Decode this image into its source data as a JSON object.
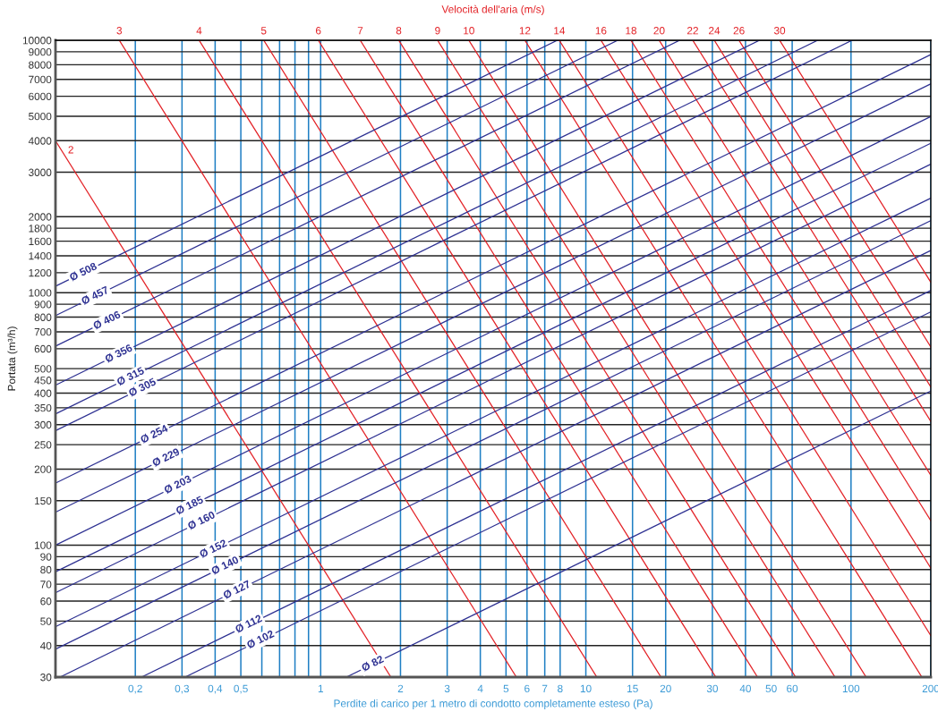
{
  "chart_data": {
    "type": "line",
    "title": "Velocità dell'aria (m/s)",
    "xlabel": "Perdite di carico per 1 metro di condotto completamente esteso (Pa)",
    "ylabel": "Portata (m³/h)",
    "log": "xy",
    "grid": true,
    "xlim": [
      0.1,
      200
    ],
    "ylim": [
      30,
      10000
    ],
    "xticks": [
      {
        "value": 0.2,
        "label": "0,2"
      },
      {
        "value": 0.3,
        "label": "0,3"
      },
      {
        "value": 0.4,
        "label": "0,4"
      },
      {
        "value": 0.5,
        "label": "0,5"
      },
      {
        "value": 0.6,
        "label": null
      },
      {
        "value": 0.7,
        "label": null
      },
      {
        "value": 0.8,
        "label": null
      },
      {
        "value": 0.9,
        "label": null
      },
      1,
      2,
      3,
      4,
      5,
      6,
      7,
      8,
      10,
      15,
      20,
      30,
      40,
      50,
      60,
      100,
      200
    ],
    "yticks": [
      30,
      40,
      50,
      60,
      70,
      80,
      90,
      100,
      150,
      200,
      250,
      300,
      350,
      400,
      450,
      500,
      600,
      700,
      800,
      900,
      1000,
      1200,
      1400,
      1600,
      1800,
      2000,
      3000,
      4000,
      5000,
      6000,
      7000,
      8000,
      9000,
      10000
    ],
    "series": [
      {
        "name": "2",
        "color": "#e32227",
        "x": [
          0.1,
          1.84
        ],
        "values": [
          4000,
          30
        ]
      },
      {
        "name": "3",
        "color": "#e32227",
        "x": [
          0.174,
          5.47
        ],
        "values": [
          10000,
          30
        ]
      },
      {
        "name": "4",
        "color": "#e32227",
        "x": [
          0.348,
          11.0
        ],
        "values": [
          10000,
          30
        ]
      },
      {
        "name": "5",
        "color": "#e32227",
        "x": [
          0.61,
          19.2
        ],
        "values": [
          10000,
          30
        ]
      },
      {
        "name": "6",
        "color": "#e32227",
        "x": [
          0.98,
          30.9
        ],
        "values": [
          10000,
          30
        ]
      },
      {
        "name": "7",
        "color": "#e32227",
        "x": [
          1.41,
          44.4
        ],
        "values": [
          10000,
          30
        ]
      },
      {
        "name": "8",
        "color": "#e32227",
        "x": [
          1.97,
          61.8
        ],
        "values": [
          10000,
          30
        ]
      },
      {
        "name": "9",
        "color": "#e32227",
        "x": [
          2.76,
          87
        ],
        "values": [
          10000,
          30
        ]
      },
      {
        "name": "10",
        "color": "#e32227",
        "x": [
          3.62,
          114
        ],
        "values": [
          10000,
          30
        ]
      },
      {
        "name": "12",
        "color": "#e32227",
        "x": [
          5.89,
          185
        ],
        "values": [
          10000,
          30
        ]
      },
      {
        "name": "14",
        "color": "#e32227",
        "x": [
          7.94,
          200
        ],
        "values": [
          10000,
          43.8
        ]
      },
      {
        "name": "16",
        "color": "#e32227",
        "x": [
          11.4,
          200
        ],
        "values": [
          10000,
          81
        ]
      },
      {
        "name": "18",
        "color": "#e32227",
        "x": [
          14.8,
          200
        ],
        "values": [
          10000,
          125
        ]
      },
      {
        "name": "20",
        "color": "#e32227",
        "x": [
          18.9,
          200
        ],
        "values": [
          10000,
          189
        ]
      },
      {
        "name": "22",
        "color": "#e32227",
        "x": [
          25.3,
          200
        ],
        "values": [
          10000,
          309
        ]
      },
      {
        "name": "24",
        "color": "#e32227",
        "x": [
          30.5,
          200
        ],
        "values": [
          10000,
          423
        ]
      },
      {
        "name": "26",
        "color": "#e32227",
        "x": [
          37.8,
          200
        ],
        "values": [
          10000,
          609
        ]
      },
      {
        "name": "30",
        "color": "#e32227",
        "x": [
          53.8,
          200
        ],
        "values": [
          10000,
          1100
        ]
      },
      {
        "name": "Ø 508",
        "color": "#2e3192",
        "x": [
          0.1,
          7.81
        ],
        "values": [
          1061,
          10000
        ]
      },
      {
        "name": "Ø 457",
        "color": "#2e3192",
        "x": [
          0.1,
          13.2
        ],
        "values": [
          811,
          10000
        ]
      },
      {
        "name": "Ø 406",
        "color": "#2e3192",
        "x": [
          0.1,
          22.6
        ],
        "values": [
          614,
          10000
        ]
      },
      {
        "name": "Ø 356",
        "color": "#2e3192",
        "x": [
          0.1,
          45.2
        ],
        "values": [
          430,
          10000
        ]
      },
      {
        "name": "Ø 315",
        "color": "#2e3192",
        "x": [
          0.1,
          74.9
        ],
        "values": [
          331,
          10000
        ]
      },
      {
        "name": "Ø 305",
        "color": "#2e3192",
        "x": [
          0.1,
          101
        ],
        "values": [
          284,
          10000
        ]
      },
      {
        "name": "Ø 254",
        "color": "#2e3192",
        "x": [
          0.1,
          200
        ],
        "values": [
          176,
          8780
        ]
      },
      {
        "name": "Ø 229",
        "color": "#2e3192",
        "x": [
          0.1,
          200
        ],
        "values": [
          135,
          6720
        ]
      },
      {
        "name": "Ø 203",
        "color": "#2e3192",
        "x": [
          0.1,
          200
        ],
        "values": [
          100,
          4990
        ]
      },
      {
        "name": "Ø 185",
        "color": "#2e3192",
        "x": [
          0.1,
          200
        ],
        "values": [
          78.4,
          3910
        ]
      },
      {
        "name": "Ø 160",
        "color": "#2e3192",
        "x": [
          0.1,
          200
        ],
        "values": [
          64.8,
          3230
        ]
      },
      {
        "name": "Ø 152",
        "color": "#2e3192",
        "x": [
          0.1,
          200
        ],
        "values": [
          47.5,
          2370
        ]
      },
      {
        "name": "Ø 140",
        "color": "#2e3192",
        "x": [
          0.1,
          200
        ],
        "values": [
          38.7,
          1930
        ]
      },
      {
        "name": "Ø 127",
        "color": "#2e3192",
        "x": [
          0.104,
          200
        ],
        "values": [
          30,
          1470
        ]
      },
      {
        "name": "Ø 112",
        "color": "#2e3192",
        "x": [
          0.211,
          200
        ],
        "values": [
          30,
          1020
        ]
      },
      {
        "name": "Ø 102",
        "color": "#2e3192",
        "x": [
          0.308,
          200
        ],
        "values": [
          30,
          840
        ]
      },
      {
        "name": "Ø 82",
        "color": "#2e3192",
        "x": [
          1.25,
          200
        ],
        "values": [
          30,
          408
        ]
      }
    ]
  }
}
